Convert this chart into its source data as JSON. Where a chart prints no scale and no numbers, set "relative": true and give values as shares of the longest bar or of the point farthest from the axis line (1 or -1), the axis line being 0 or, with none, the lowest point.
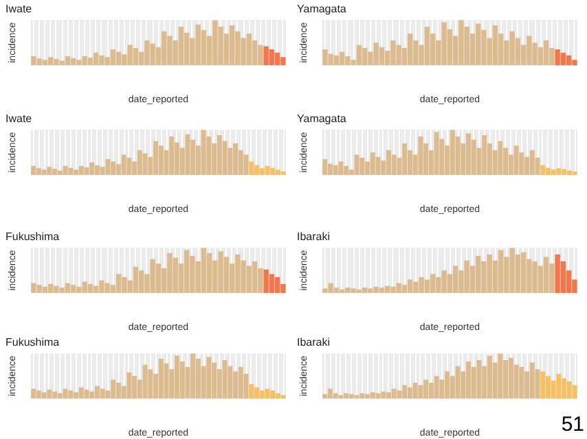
{
  "chart_data": [
    {
      "type": "bar",
      "title": "Iwate",
      "xlabel": "date_reported",
      "ylabel": "incidence",
      "relative": true,
      "grid": "x",
      "categories": [
        null,
        null,
        null,
        null,
        null,
        null,
        null,
        null,
        null,
        null,
        null,
        null,
        null,
        null,
        null,
        null,
        null,
        null,
        null,
        null,
        null,
        null,
        null,
        null,
        null,
        null,
        null,
        null,
        null,
        null,
        null,
        null,
        null,
        null,
        null,
        null,
        null,
        null,
        null,
        null,
        null,
        null,
        null,
        null,
        null
      ],
      "values": [
        0.2,
        0.15,
        0.12,
        0.18,
        0.14,
        0.1,
        0.2,
        0.16,
        0.12,
        0.2,
        0.17,
        0.28,
        0.22,
        0.18,
        0.35,
        0.3,
        0.24,
        0.45,
        0.38,
        0.3,
        0.55,
        0.48,
        0.4,
        0.75,
        0.65,
        0.55,
        0.85,
        0.72,
        0.6,
        0.9,
        0.78,
        0.65,
        1.0,
        0.85,
        0.7,
        0.88,
        0.75,
        0.6,
        0.7,
        0.55,
        0.45,
        0.42,
        0.35,
        0.28,
        0.18
      ],
      "colors": [
        "#dcbc8e",
        "#dcbc8e",
        "#dcbc8e",
        "#dcbc8e",
        "#dcbc8e",
        "#dcbc8e",
        "#dcbc8e",
        "#dcbc8e",
        "#dcbc8e",
        "#dcbc8e",
        "#dcbc8e",
        "#dcbc8e",
        "#dcbc8e",
        "#dcbc8e",
        "#dcbc8e",
        "#dcbc8e",
        "#dcbc8e",
        "#dcbc8e",
        "#dcbc8e",
        "#dcbc8e",
        "#dcbc8e",
        "#dcbc8e",
        "#dcbc8e",
        "#dcbc8e",
        "#dcbc8e",
        "#dcbc8e",
        "#dcbc8e",
        "#dcbc8e",
        "#dcbc8e",
        "#dcbc8e",
        "#dcbc8e",
        "#dcbc8e",
        "#dcbc8e",
        "#dcbc8e",
        "#dcbc8e",
        "#dcbc8e",
        "#dcbc8e",
        "#dcbc8e",
        "#dcbc8e",
        "#dcbc8e",
        "#dcbc8e",
        "#f2784b",
        "#f2784b",
        "#f2784b",
        "#f2784b"
      ]
    },
    {
      "type": "bar",
      "title": "Yamagata",
      "xlabel": "date_reported",
      "ylabel": "incidence",
      "relative": true,
      "grid": "x",
      "categories": [
        null,
        null,
        null,
        null,
        null,
        null,
        null,
        null,
        null,
        null,
        null,
        null,
        null,
        null,
        null,
        null,
        null,
        null,
        null,
        null,
        null,
        null,
        null,
        null,
        null,
        null,
        null,
        null,
        null,
        null,
        null,
        null,
        null,
        null,
        null,
        null,
        null,
        null,
        null,
        null,
        null,
        null,
        null,
        null,
        null
      ],
      "values": [
        0.35,
        0.25,
        0.22,
        0.3,
        0.2,
        0.12,
        0.45,
        0.38,
        0.3,
        0.5,
        0.4,
        0.32,
        0.55,
        0.45,
        0.38,
        0.7,
        0.55,
        0.45,
        0.85,
        0.7,
        0.55,
        0.95,
        0.8,
        0.65,
        1.0,
        0.85,
        0.7,
        0.92,
        0.78,
        0.6,
        0.88,
        0.7,
        0.55,
        0.75,
        0.6,
        0.45,
        0.65,
        0.5,
        0.4,
        0.55,
        0.38,
        0.35,
        0.28,
        0.22,
        0.12
      ],
      "colors": [
        "#dcbc8e",
        "#dcbc8e",
        "#dcbc8e",
        "#dcbc8e",
        "#dcbc8e",
        "#dcbc8e",
        "#dcbc8e",
        "#dcbc8e",
        "#dcbc8e",
        "#dcbc8e",
        "#dcbc8e",
        "#dcbc8e",
        "#dcbc8e",
        "#dcbc8e",
        "#dcbc8e",
        "#dcbc8e",
        "#dcbc8e",
        "#dcbc8e",
        "#dcbc8e",
        "#dcbc8e",
        "#dcbc8e",
        "#dcbc8e",
        "#dcbc8e",
        "#dcbc8e",
        "#dcbc8e",
        "#dcbc8e",
        "#dcbc8e",
        "#dcbc8e",
        "#dcbc8e",
        "#dcbc8e",
        "#dcbc8e",
        "#dcbc8e",
        "#dcbc8e",
        "#dcbc8e",
        "#dcbc8e",
        "#dcbc8e",
        "#dcbc8e",
        "#dcbc8e",
        "#dcbc8e",
        "#dcbc8e",
        "#dcbc8e",
        "#f2784b",
        "#f2784b",
        "#f2784b",
        "#f2784b"
      ]
    },
    {
      "type": "bar",
      "title": "Iwate",
      "xlabel": "date_reported",
      "ylabel": "incidence",
      "relative": true,
      "grid": "x",
      "categories": [
        null,
        null,
        null,
        null,
        null,
        null,
        null,
        null,
        null,
        null,
        null,
        null,
        null,
        null,
        null,
        null,
        null,
        null,
        null,
        null,
        null,
        null,
        null,
        null,
        null,
        null,
        null,
        null,
        null,
        null,
        null,
        null,
        null,
        null,
        null,
        null,
        null,
        null,
        null,
        null,
        null,
        null,
        null,
        null,
        null,
        null,
        null,
        null
      ],
      "values": [
        0.2,
        0.15,
        0.12,
        0.18,
        0.14,
        0.1,
        0.2,
        0.16,
        0.12,
        0.2,
        0.17,
        0.28,
        0.22,
        0.18,
        0.35,
        0.3,
        0.24,
        0.45,
        0.38,
        0.3,
        0.55,
        0.48,
        0.4,
        0.75,
        0.65,
        0.55,
        0.85,
        0.72,
        0.6,
        0.9,
        0.78,
        0.65,
        1.0,
        0.85,
        0.7,
        0.88,
        0.75,
        0.6,
        0.7,
        0.55,
        0.45,
        0.3,
        0.22,
        0.15,
        0.2,
        0.16,
        0.12,
        0.08
      ],
      "colors": [
        "#dcbc8e",
        "#dcbc8e",
        "#dcbc8e",
        "#dcbc8e",
        "#dcbc8e",
        "#dcbc8e",
        "#dcbc8e",
        "#dcbc8e",
        "#dcbc8e",
        "#dcbc8e",
        "#dcbc8e",
        "#dcbc8e",
        "#dcbc8e",
        "#dcbc8e",
        "#dcbc8e",
        "#dcbc8e",
        "#dcbc8e",
        "#dcbc8e",
        "#dcbc8e",
        "#dcbc8e",
        "#dcbc8e",
        "#dcbc8e",
        "#dcbc8e",
        "#dcbc8e",
        "#dcbc8e",
        "#dcbc8e",
        "#dcbc8e",
        "#dcbc8e",
        "#dcbc8e",
        "#dcbc8e",
        "#dcbc8e",
        "#dcbc8e",
        "#dcbc8e",
        "#dcbc8e",
        "#dcbc8e",
        "#dcbc8e",
        "#dcbc8e",
        "#dcbc8e",
        "#dcbc8e",
        "#dcbc8e",
        "#dcbc8e",
        "#f7c062",
        "#f7c062",
        "#f7c062",
        "#f7c062",
        "#f7c062",
        "#f7c062",
        "#f7c062"
      ]
    },
    {
      "type": "bar",
      "title": "Yamagata",
      "xlabel": "date_reported",
      "ylabel": "incidence",
      "relative": true,
      "grid": "x",
      "categories": [
        null,
        null,
        null,
        null,
        null,
        null,
        null,
        null,
        null,
        null,
        null,
        null,
        null,
        null,
        null,
        null,
        null,
        null,
        null,
        null,
        null,
        null,
        null,
        null,
        null,
        null,
        null,
        null,
        null,
        null,
        null,
        null,
        null,
        null,
        null,
        null,
        null,
        null,
        null,
        null,
        null,
        null,
        null,
        null,
        null,
        null,
        null,
        null
      ],
      "values": [
        0.35,
        0.25,
        0.22,
        0.3,
        0.2,
        0.12,
        0.45,
        0.38,
        0.3,
        0.5,
        0.4,
        0.32,
        0.55,
        0.45,
        0.38,
        0.7,
        0.55,
        0.45,
        0.85,
        0.7,
        0.55,
        0.95,
        0.8,
        0.65,
        1.0,
        0.85,
        0.7,
        0.92,
        0.78,
        0.6,
        0.88,
        0.7,
        0.55,
        0.75,
        0.6,
        0.45,
        0.65,
        0.5,
        0.4,
        0.55,
        0.38,
        0.22,
        0.16,
        0.12,
        0.15,
        0.13,
        0.1,
        0.08
      ],
      "colors": [
        "#dcbc8e",
        "#dcbc8e",
        "#dcbc8e",
        "#dcbc8e",
        "#dcbc8e",
        "#dcbc8e",
        "#dcbc8e",
        "#dcbc8e",
        "#dcbc8e",
        "#dcbc8e",
        "#dcbc8e",
        "#dcbc8e",
        "#dcbc8e",
        "#dcbc8e",
        "#dcbc8e",
        "#dcbc8e",
        "#dcbc8e",
        "#dcbc8e",
        "#dcbc8e",
        "#dcbc8e",
        "#dcbc8e",
        "#dcbc8e",
        "#dcbc8e",
        "#dcbc8e",
        "#dcbc8e",
        "#dcbc8e",
        "#dcbc8e",
        "#dcbc8e",
        "#dcbc8e",
        "#dcbc8e",
        "#dcbc8e",
        "#dcbc8e",
        "#dcbc8e",
        "#dcbc8e",
        "#dcbc8e",
        "#dcbc8e",
        "#dcbc8e",
        "#dcbc8e",
        "#dcbc8e",
        "#dcbc8e",
        "#dcbc8e",
        "#f7c062",
        "#f7c062",
        "#f7c062",
        "#f7c062",
        "#f7c062",
        "#f7c062",
        "#f7c062"
      ]
    },
    {
      "type": "bar",
      "title": "Fukushima",
      "xlabel": "date_reported",
      "ylabel": "incidence",
      "relative": true,
      "grid": "x",
      "categories": [
        null,
        null,
        null,
        null,
        null,
        null,
        null,
        null,
        null,
        null,
        null,
        null,
        null,
        null,
        null,
        null,
        null,
        null,
        null,
        null,
        null,
        null,
        null,
        null,
        null,
        null,
        null,
        null,
        null,
        null,
        null,
        null,
        null,
        null,
        null,
        null,
        null,
        null,
        null,
        null,
        null,
        null,
        null,
        null,
        null
      ],
      "values": [
        0.22,
        0.18,
        0.14,
        0.2,
        0.16,
        0.12,
        0.22,
        0.18,
        0.14,
        0.25,
        0.2,
        0.16,
        0.28,
        0.22,
        0.18,
        0.42,
        0.35,
        0.28,
        0.58,
        0.5,
        0.42,
        0.75,
        0.65,
        0.55,
        0.88,
        0.78,
        0.65,
        0.95,
        0.82,
        0.7,
        1.0,
        0.88,
        0.72,
        0.92,
        0.8,
        0.65,
        0.85,
        0.72,
        0.6,
        0.7,
        0.55,
        0.52,
        0.42,
        0.35,
        0.2
      ],
      "colors": [
        "#dcbc8e",
        "#dcbc8e",
        "#dcbc8e",
        "#dcbc8e",
        "#dcbc8e",
        "#dcbc8e",
        "#dcbc8e",
        "#dcbc8e",
        "#dcbc8e",
        "#dcbc8e",
        "#dcbc8e",
        "#dcbc8e",
        "#dcbc8e",
        "#dcbc8e",
        "#dcbc8e",
        "#dcbc8e",
        "#dcbc8e",
        "#dcbc8e",
        "#dcbc8e",
        "#dcbc8e",
        "#dcbc8e",
        "#dcbc8e",
        "#dcbc8e",
        "#dcbc8e",
        "#dcbc8e",
        "#dcbc8e",
        "#dcbc8e",
        "#dcbc8e",
        "#dcbc8e",
        "#dcbc8e",
        "#dcbc8e",
        "#dcbc8e",
        "#dcbc8e",
        "#dcbc8e",
        "#dcbc8e",
        "#dcbc8e",
        "#dcbc8e",
        "#dcbc8e",
        "#dcbc8e",
        "#dcbc8e",
        "#dcbc8e",
        "#f2784b",
        "#f2784b",
        "#f2784b",
        "#f2784b"
      ]
    },
    {
      "type": "bar",
      "title": "Ibaraki",
      "xlabel": "date_reported",
      "ylabel": "incidence",
      "relative": true,
      "grid": "x",
      "categories": [
        null,
        null,
        null,
        null,
        null,
        null,
        null,
        null,
        null,
        null,
        null,
        null,
        null,
        null,
        null,
        null,
        null,
        null,
        null,
        null,
        null,
        null,
        null,
        null,
        null,
        null,
        null,
        null,
        null,
        null,
        null,
        null,
        null,
        null,
        null,
        null,
        null,
        null,
        null,
        null,
        null,
        null,
        null,
        null,
        null
      ],
      "values": [
        0.1,
        0.22,
        0.12,
        0.08,
        0.12,
        0.1,
        0.08,
        0.12,
        0.1,
        0.14,
        0.12,
        0.16,
        0.14,
        0.22,
        0.18,
        0.3,
        0.25,
        0.35,
        0.3,
        0.42,
        0.35,
        0.5,
        0.42,
        0.6,
        0.5,
        0.72,
        0.6,
        0.82,
        0.7,
        0.85,
        0.72,
        0.95,
        0.8,
        1.0,
        0.85,
        0.9,
        0.75,
        0.7,
        0.6,
        0.8,
        0.65,
        0.85,
        0.7,
        0.5,
        0.3
      ],
      "colors": [
        "#dcbc8e",
        "#dcbc8e",
        "#dcbc8e",
        "#dcbc8e",
        "#dcbc8e",
        "#dcbc8e",
        "#dcbc8e",
        "#dcbc8e",
        "#dcbc8e",
        "#dcbc8e",
        "#dcbc8e",
        "#dcbc8e",
        "#dcbc8e",
        "#dcbc8e",
        "#dcbc8e",
        "#dcbc8e",
        "#dcbc8e",
        "#dcbc8e",
        "#dcbc8e",
        "#dcbc8e",
        "#dcbc8e",
        "#dcbc8e",
        "#dcbc8e",
        "#dcbc8e",
        "#dcbc8e",
        "#dcbc8e",
        "#dcbc8e",
        "#dcbc8e",
        "#dcbc8e",
        "#dcbc8e",
        "#dcbc8e",
        "#dcbc8e",
        "#dcbc8e",
        "#dcbc8e",
        "#dcbc8e",
        "#dcbc8e",
        "#dcbc8e",
        "#dcbc8e",
        "#dcbc8e",
        "#dcbc8e",
        "#dcbc8e",
        "#f2784b",
        "#f2784b",
        "#f2784b",
        "#f2784b"
      ]
    },
    {
      "type": "bar",
      "title": "Fukushima",
      "xlabel": "date_reported",
      "ylabel": "incidence",
      "relative": true,
      "grid": "x",
      "categories": [
        null,
        null,
        null,
        null,
        null,
        null,
        null,
        null,
        null,
        null,
        null,
        null,
        null,
        null,
        null,
        null,
        null,
        null,
        null,
        null,
        null,
        null,
        null,
        null,
        null,
        null,
        null,
        null,
        null,
        null,
        null,
        null,
        null,
        null,
        null,
        null,
        null,
        null,
        null,
        null,
        null,
        null,
        null,
        null,
        null,
        null,
        null,
        null
      ],
      "values": [
        0.22,
        0.18,
        0.14,
        0.2,
        0.16,
        0.12,
        0.22,
        0.18,
        0.14,
        0.25,
        0.2,
        0.16,
        0.28,
        0.22,
        0.18,
        0.42,
        0.35,
        0.28,
        0.58,
        0.5,
        0.42,
        0.75,
        0.65,
        0.55,
        0.88,
        0.78,
        0.65,
        0.95,
        0.82,
        0.7,
        1.0,
        0.88,
        0.72,
        0.92,
        0.8,
        0.65,
        0.85,
        0.72,
        0.6,
        0.7,
        0.55,
        0.32,
        0.25,
        0.18,
        0.22,
        0.18,
        0.12,
        0.08
      ],
      "colors": [
        "#dcbc8e",
        "#dcbc8e",
        "#dcbc8e",
        "#dcbc8e",
        "#dcbc8e",
        "#dcbc8e",
        "#dcbc8e",
        "#dcbc8e",
        "#dcbc8e",
        "#dcbc8e",
        "#dcbc8e",
        "#dcbc8e",
        "#dcbc8e",
        "#dcbc8e",
        "#dcbc8e",
        "#dcbc8e",
        "#dcbc8e",
        "#dcbc8e",
        "#dcbc8e",
        "#dcbc8e",
        "#dcbc8e",
        "#dcbc8e",
        "#dcbc8e",
        "#dcbc8e",
        "#dcbc8e",
        "#dcbc8e",
        "#dcbc8e",
        "#dcbc8e",
        "#dcbc8e",
        "#dcbc8e",
        "#dcbc8e",
        "#dcbc8e",
        "#dcbc8e",
        "#dcbc8e",
        "#dcbc8e",
        "#dcbc8e",
        "#dcbc8e",
        "#dcbc8e",
        "#dcbc8e",
        "#dcbc8e",
        "#dcbc8e",
        "#f7c062",
        "#f7c062",
        "#f7c062",
        "#f7c062",
        "#f7c062",
        "#f7c062",
        "#f7c062"
      ]
    },
    {
      "type": "bar",
      "title": "Ibaraki",
      "xlabel": "date_reported",
      "ylabel": "incidence",
      "relative": true,
      "grid": "x",
      "annotations": [
        "51"
      ],
      "categories": [
        null,
        null,
        null,
        null,
        null,
        null,
        null,
        null,
        null,
        null,
        null,
        null,
        null,
        null,
        null,
        null,
        null,
        null,
        null,
        null,
        null,
        null,
        null,
        null,
        null,
        null,
        null,
        null,
        null,
        null,
        null,
        null,
        null,
        null,
        null,
        null,
        null,
        null,
        null,
        null,
        null,
        null,
        null,
        null,
        null,
        null,
        null,
        null
      ],
      "values": [
        0.1,
        0.22,
        0.12,
        0.08,
        0.12,
        0.1,
        0.08,
        0.12,
        0.1,
        0.14,
        0.12,
        0.16,
        0.14,
        0.22,
        0.18,
        0.3,
        0.25,
        0.35,
        0.3,
        0.42,
        0.35,
        0.5,
        0.42,
        0.6,
        0.5,
        0.72,
        0.6,
        0.82,
        0.7,
        0.85,
        0.72,
        0.95,
        0.8,
        1.0,
        0.85,
        0.9,
        0.75,
        0.7,
        0.6,
        0.8,
        0.65,
        0.6,
        0.5,
        0.4,
        0.55,
        0.45,
        0.38,
        0.3
      ],
      "colors": [
        "#dcbc8e",
        "#dcbc8e",
        "#dcbc8e",
        "#dcbc8e",
        "#dcbc8e",
        "#dcbc8e",
        "#dcbc8e",
        "#dcbc8e",
        "#dcbc8e",
        "#dcbc8e",
        "#dcbc8e",
        "#dcbc8e",
        "#dcbc8e",
        "#dcbc8e",
        "#dcbc8e",
        "#dcbc8e",
        "#dcbc8e",
        "#dcbc8e",
        "#dcbc8e",
        "#dcbc8e",
        "#dcbc8e",
        "#dcbc8e",
        "#dcbc8e",
        "#dcbc8e",
        "#dcbc8e",
        "#dcbc8e",
        "#dcbc8e",
        "#dcbc8e",
        "#dcbc8e",
        "#dcbc8e",
        "#dcbc8e",
        "#dcbc8e",
        "#dcbc8e",
        "#dcbc8e",
        "#dcbc8e",
        "#dcbc8e",
        "#dcbc8e",
        "#dcbc8e",
        "#dcbc8e",
        "#dcbc8e",
        "#dcbc8e",
        "#f7c062",
        "#f7c062",
        "#f7c062",
        "#f7c062",
        "#f7c062",
        "#f7c062",
        "#f7c062"
      ]
    }
  ]
}
